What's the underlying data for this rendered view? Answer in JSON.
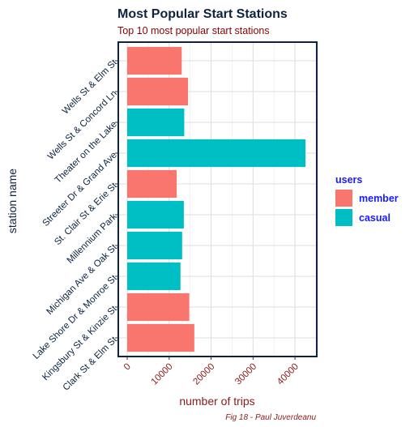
{
  "chart_data": {
    "type": "bar",
    "orientation": "horizontal",
    "title": "Most Popular Start Stations",
    "subtitle": "Top 10 most popular start stations",
    "xlabel": "number of trips",
    "ylabel": "station name",
    "caption": "Fig 18 - Paul Juverdeanu",
    "xlim": [
      0,
      45000
    ],
    "xticks": [
      0,
      10000,
      20000,
      30000,
      40000
    ],
    "grid": true,
    "legend": {
      "title": "users",
      "position": "right",
      "items": [
        {
          "label": "member",
          "color": "#f8766d"
        },
        {
          "label": "casual",
          "color": "#00bfc4"
        }
      ]
    },
    "categories": [
      "Wells St & Elm St",
      "Wells St & Concord Ln",
      "Theater on the Lake",
      "Streeter Dr & Grand Ave",
      "St. Clair St & Erie St",
      "Millennium Park",
      "Michigan Ave & Oak St",
      "Lake Shore Dr & Monroe St",
      "Kingsbury St & Kinzie St",
      "Clark St & Elm St"
    ],
    "bars": [
      {
        "station": "Wells St & Elm St",
        "user": "member",
        "value": 13000
      },
      {
        "station": "Wells St & Concord Ln",
        "user": "member",
        "value": 14500
      },
      {
        "station": "Theater on the Lake",
        "user": "casual",
        "value": 13600
      },
      {
        "station": "Streeter Dr & Grand Ave",
        "user": "casual",
        "value": 42500
      },
      {
        "station": "St. Clair St & Erie St",
        "user": "member",
        "value": 11800
      },
      {
        "station": "Millennium Park",
        "user": "casual",
        "value": 13500
      },
      {
        "station": "Michigan Ave & Oak St",
        "user": "casual",
        "value": 13100
      },
      {
        "station": "Lake Shore Dr & Monroe St",
        "user": "casual",
        "value": 12700
      },
      {
        "station": "Kingsbury St & Kinzie St",
        "user": "member",
        "value": 14800
      },
      {
        "station": "Clark St & Elm St",
        "user": "member",
        "value": 16000
      }
    ]
  }
}
